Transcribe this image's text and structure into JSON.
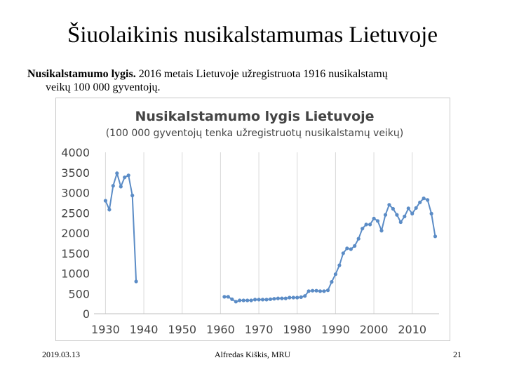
{
  "slide": {
    "title": "Šiuolaikinis nusikalstamumas Lietuvoje",
    "intro_bold": "Nusikalstamumo lygis.",
    "intro_rest_1": " 2016 metais Lietuvoje užregistruota 1916 nusikalstamų",
    "intro_rest_2": "veikų 100 000 gyventojų."
  },
  "footer": {
    "date": "2019.03.13",
    "author": "Alfredas Kiškis, MRU",
    "page": "21"
  },
  "chart_data": {
    "type": "line",
    "title": "Nusikalstamumo lygis Lietuvoje",
    "subtitle": "(100 000 gyventojų tenka užregistruotų nusikalstamų veikų)",
    "xlabel": "",
    "ylabel": "",
    "xlim": [
      1927,
      2017
    ],
    "ylim": [
      0,
      4000
    ],
    "x_ticks": [
      1930,
      1940,
      1950,
      1960,
      1970,
      1980,
      1990,
      2000,
      2010
    ],
    "y_ticks": [
      0,
      500,
      1000,
      1500,
      2000,
      2500,
      3000,
      3500,
      4000
    ],
    "grid": "vertical",
    "color": "#5b8cc6",
    "grid_color": "#d9d9d9",
    "series": [
      {
        "segment": "1930-1939",
        "points": [
          [
            1930,
            2800
          ],
          [
            1931,
            2580
          ],
          [
            1932,
            3170
          ],
          [
            1933,
            3480
          ],
          [
            1934,
            3150
          ],
          [
            1935,
            3380
          ],
          [
            1936,
            3430
          ],
          [
            1937,
            2930
          ],
          [
            1938,
            800
          ]
        ]
      },
      {
        "segment": "1960-2016",
        "points": [
          [
            1961,
            420
          ],
          [
            1962,
            420
          ],
          [
            1963,
            360
          ],
          [
            1964,
            300
          ],
          [
            1965,
            330
          ],
          [
            1966,
            330
          ],
          [
            1967,
            330
          ],
          [
            1968,
            330
          ],
          [
            1969,
            350
          ],
          [
            1970,
            350
          ],
          [
            1971,
            350
          ],
          [
            1972,
            350
          ],
          [
            1973,
            360
          ],
          [
            1974,
            370
          ],
          [
            1975,
            380
          ],
          [
            1976,
            380
          ],
          [
            1977,
            380
          ],
          [
            1978,
            400
          ],
          [
            1979,
            400
          ],
          [
            1980,
            400
          ],
          [
            1981,
            410
          ],
          [
            1982,
            440
          ],
          [
            1983,
            560
          ],
          [
            1984,
            570
          ],
          [
            1985,
            570
          ],
          [
            1986,
            560
          ],
          [
            1987,
            560
          ],
          [
            1988,
            580
          ],
          [
            1989,
            790
          ],
          [
            1990,
            980
          ],
          [
            1991,
            1200
          ],
          [
            1992,
            1500
          ],
          [
            1993,
            1620
          ],
          [
            1994,
            1600
          ],
          [
            1995,
            1680
          ],
          [
            1996,
            1860
          ],
          [
            1997,
            2110
          ],
          [
            1998,
            2210
          ],
          [
            1999,
            2210
          ],
          [
            2000,
            2360
          ],
          [
            2001,
            2300
          ],
          [
            2002,
            2060
          ],
          [
            2003,
            2450
          ],
          [
            2004,
            2700
          ],
          [
            2005,
            2600
          ],
          [
            2006,
            2450
          ],
          [
            2007,
            2270
          ],
          [
            2008,
            2410
          ],
          [
            2009,
            2610
          ],
          [
            2010,
            2480
          ],
          [
            2011,
            2620
          ],
          [
            2012,
            2760
          ],
          [
            2013,
            2860
          ],
          [
            2014,
            2820
          ],
          [
            2015,
            2480
          ],
          [
            2016,
            1916
          ]
        ]
      }
    ]
  }
}
